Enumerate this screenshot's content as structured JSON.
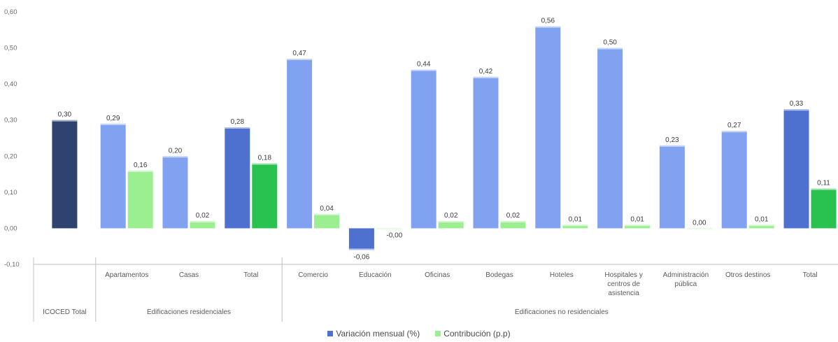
{
  "colors": {
    "dark": "#2E4370",
    "strong": "#4E70CE",
    "light": "#81A2F0",
    "green_strong": "#29C24E",
    "green_light": "#9BEF91",
    "axis": "#bfbfbf"
  },
  "chart_data": {
    "type": "bar",
    "y_ticks": [
      "0,60",
      "0,50",
      "0,40",
      "0,30",
      "0,20",
      "0,10",
      "0,00",
      "-0,10"
    ],
    "ylim": [
      -0.1,
      0.6
    ],
    "categories": [
      "",
      "Apartamentos",
      "Casas",
      "Total",
      "Comercio",
      "Educación",
      "Oficinas",
      "Bodegas",
      "Hoteles",
      "Hospitales y centros de asistencia",
      "Administración pública",
      "Otros destinos",
      "Total"
    ],
    "category_lines": [
      [
        ""
      ],
      [
        "Apartamentos"
      ],
      [
        "Casas"
      ],
      [
        "Total"
      ],
      [
        "Comercio"
      ],
      [
        "Educación"
      ],
      [
        "Oficinas"
      ],
      [
        "Bodegas"
      ],
      [
        "Hoteles"
      ],
      [
        "Hospitales y",
        "centros de",
        "asistencia"
      ],
      [
        "Administración",
        "pública"
      ],
      [
        "Otros destinos"
      ],
      [
        "Total"
      ]
    ],
    "groups": [
      {
        "label": "ICOCED Total",
        "span": 1
      },
      {
        "label": "Edificaciones residenciales",
        "span": 3
      },
      {
        "label": "Edificaciones no residenciales",
        "span": 9
      }
    ],
    "series": [
      {
        "name": "Variación mensual (%)",
        "values": [
          0.3,
          0.29,
          0.2,
          0.28,
          0.47,
          -0.06,
          0.44,
          0.42,
          0.56,
          0.5,
          0.23,
          0.27,
          0.33
        ],
        "labels": [
          "0,30",
          "0,29",
          "0,20",
          "0,28",
          "0,47",
          "-0,06",
          "0,44",
          "0,42",
          "0,56",
          "0,50",
          "0,23",
          "0,27",
          "0,33"
        ],
        "styles": [
          "dark",
          "light",
          "light",
          "strong",
          "light",
          "strong",
          "light",
          "light",
          "light",
          "light",
          "light",
          "light",
          "strong"
        ]
      },
      {
        "name": "Contribución (p.p)",
        "values": [
          null,
          0.16,
          0.02,
          0.18,
          0.04,
          -0.002,
          0.02,
          0.02,
          0.01,
          0.01,
          0.0,
          0.01,
          0.11
        ],
        "labels": [
          "",
          "0,16",
          "0,02",
          "0,18",
          "0,04",
          "-0,00",
          "0,02",
          "0,02",
          "0,01",
          "0,01",
          "0,00",
          "0,01",
          "0,11"
        ],
        "styles": [
          null,
          "green_light",
          "green_light",
          "green_strong",
          "green_light",
          "green_light",
          "green_light",
          "green_light",
          "green_light",
          "green_light",
          "green_light",
          "green_light",
          "green_strong"
        ]
      }
    ],
    "legend_position": "bottom",
    "grid": false
  }
}
